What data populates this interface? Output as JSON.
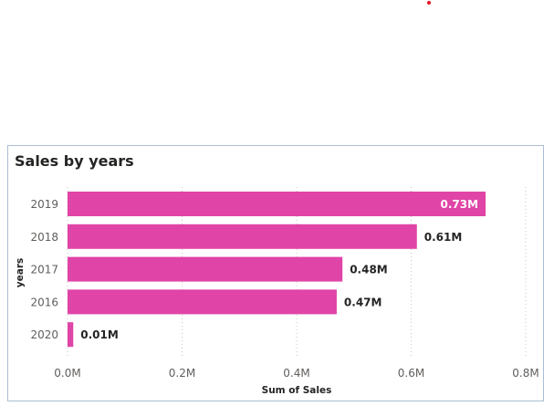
{
  "indicator": {
    "color": "#e81123"
  },
  "visual": {
    "title": "Sales by years"
  },
  "chart_data": {
    "type": "bar",
    "orientation": "horizontal",
    "title": "Sales by years",
    "xlabel": "Sum of Sales",
    "ylabel": "years",
    "categories": [
      "2019",
      "2018",
      "2017",
      "2016",
      "2020"
    ],
    "values": [
      0.73,
      0.61,
      0.48,
      0.47,
      0.01
    ],
    "value_unit": "M",
    "data_labels": [
      "0.73M",
      "0.61M",
      "0.48M",
      "0.47M",
      "0.01M"
    ],
    "xlim": [
      0,
      0.8
    ],
    "xticks": [
      0,
      0.2,
      0.4,
      0.6,
      0.8
    ],
    "xtick_labels": [
      "0.0M",
      "0.2M",
      "0.4M",
      "0.6M",
      "0.8M"
    ],
    "grid": true,
    "bar_color": "#e044a7",
    "label_inside_color": "#ffffff",
    "label_outside_color": "#252423"
  }
}
